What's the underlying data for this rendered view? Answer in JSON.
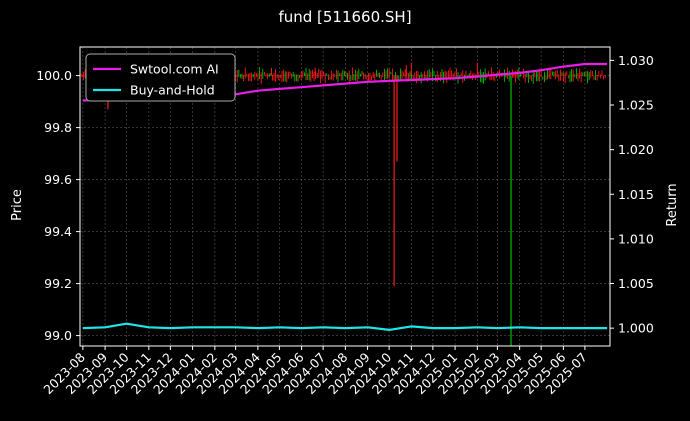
{
  "chart_data": {
    "type": "line",
    "title": "fund [511660.SH]",
    "ylabel_left": "Price",
    "ylabel_right": "Return",
    "xlabel": "",
    "ylim_left": [
      98.96,
      100.11
    ],
    "ylim_right": [
      0.998,
      1.0315
    ],
    "yticks_left": [
      "99.0",
      "99.2",
      "99.4",
      "99.6",
      "99.8",
      "100.0"
    ],
    "yticks_right": [
      "1.000",
      "1.005",
      "1.010",
      "1.015",
      "1.020",
      "1.025",
      "1.030"
    ],
    "x_categories": [
      "2023-08",
      "2023-09",
      "2023-10",
      "2023-11",
      "2023-12",
      "2024-01",
      "2024-02",
      "2024-03",
      "2024-04",
      "2024-05",
      "2024-06",
      "2024-07",
      "2024-08",
      "2024-09",
      "2024-10",
      "2024-11",
      "2024-12",
      "2025-01",
      "2025-02",
      "2025-03",
      "2025-04",
      "2025-05",
      "2025-06",
      "2025-07"
    ],
    "grid": true,
    "legend_position": "top-left",
    "series": [
      {
        "name": "Swtool.com AI",
        "axis": "right",
        "color": "#e61ee6",
        "x": [
          "2023-08",
          "2023-09",
          "2023-10",
          "2023-11",
          "2023-12",
          "2024-01",
          "2024-02",
          "2024-03",
          "2024-04",
          "2024-05",
          "2024-06",
          "2024-07",
          "2024-08",
          "2024-09",
          "2024-10",
          "2024-11",
          "2024-12",
          "2025-01",
          "2025-02",
          "2025-03",
          "2025-04",
          "2025-05",
          "2025-06",
          "2025-07",
          "2025-08"
        ],
        "values": [
          1.0255,
          1.0257,
          1.0259,
          1.0259,
          1.026,
          1.0261,
          1.0261,
          1.0262,
          1.0266,
          1.0268,
          1.027,
          1.0272,
          1.0274,
          1.0276,
          1.0277,
          1.0278,
          1.0279,
          1.028,
          1.0282,
          1.0284,
          1.0286,
          1.0289,
          1.0293,
          1.0296,
          1.0296
        ]
      },
      {
        "name": "Buy-and-Hold",
        "axis": "right",
        "color": "#1ee6e6",
        "x": [
          "2023-08",
          "2023-09",
          "2023-10",
          "2023-11",
          "2023-12",
          "2024-01",
          "2024-02",
          "2024-03",
          "2024-04",
          "2024-05",
          "2024-06",
          "2024-07",
          "2024-08",
          "2024-09",
          "2024-10",
          "2024-11",
          "2024-12",
          "2025-01",
          "2025-02",
          "2025-03",
          "2025-04",
          "2025-05",
          "2025-06",
          "2025-07",
          "2025-08"
        ],
        "values": [
          1.0,
          1.0001,
          1.0005,
          1.0001,
          1.0,
          1.0001,
          1.0001,
          1.0001,
          1.0,
          1.0001,
          1.0,
          1.0001,
          1.0,
          1.0001,
          0.9998,
          1.0002,
          1.0,
          1.0,
          1.0001,
          1.0,
          1.0001,
          1.0,
          1.0,
          1.0,
          1.0
        ]
      }
    ],
    "candles": {
      "axis": "left",
      "up_color": "#00c000",
      "down_color": "#ff1a1a",
      "spikes": [
        {
          "date": "2023-09-05",
          "low": 99.87,
          "color": "down"
        },
        {
          "date": "2024-10-08",
          "low": 99.19,
          "color": "down"
        },
        {
          "date": "2024-10-12",
          "low": 99.67,
          "color": "down"
        },
        {
          "date": "2025-03-20",
          "low": 98.96,
          "color": "up"
        }
      ]
    }
  }
}
